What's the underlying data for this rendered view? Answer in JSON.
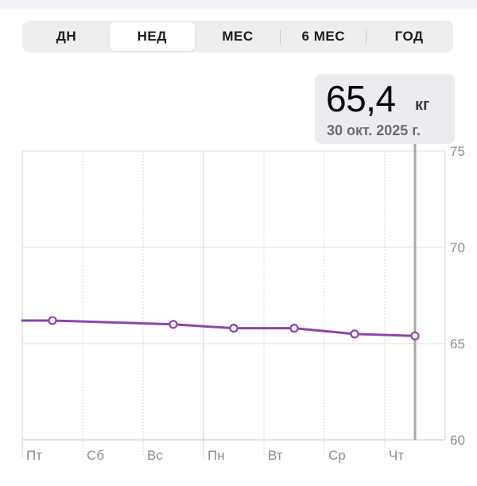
{
  "range_selector": {
    "options": [
      "ДН",
      "НЕД",
      "МЕС",
      "6 МЕС",
      "ГОД"
    ],
    "selected": "НЕД"
  },
  "callout": {
    "value": "65,4",
    "unit": "кг",
    "date": "30 окт. 2025 г."
  },
  "chart_data": {
    "type": "line",
    "categories": [
      "Пт",
      "Сб",
      "Вс",
      "Пн",
      "Вт",
      "Ср",
      "Чт"
    ],
    "x_tick_labels": [
      "Пт",
      "Сб",
      "Вс",
      "Пн",
      "Вт",
      "Ср",
      "Чт"
    ],
    "y_tick_labels": [
      "75",
      "70",
      "65",
      "60"
    ],
    "ylim": [
      60,
      75
    ],
    "grid": true,
    "line_color": "#8e44ad",
    "selected_category": "Чт",
    "series": [
      {
        "values": [
          66.2,
          null,
          66.0,
          65.8,
          65.8,
          65.5,
          65.4
        ]
      }
    ]
  }
}
